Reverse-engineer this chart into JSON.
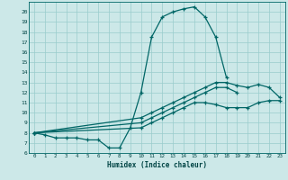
{
  "xlabel": "Humidex (Indice chaleur)",
  "bg_color": "#cce8e8",
  "grid_color": "#99cccc",
  "line_color": "#006666",
  "text_color": "#004444",
  "xlim": [
    -0.5,
    23.5
  ],
  "ylim": [
    6,
    21
  ],
  "yticks": [
    6,
    7,
    8,
    9,
    10,
    11,
    12,
    13,
    14,
    15,
    16,
    17,
    18,
    19,
    20
  ],
  "xticks": [
    0,
    1,
    2,
    3,
    4,
    5,
    6,
    7,
    8,
    9,
    10,
    11,
    12,
    13,
    14,
    15,
    16,
    17,
    18,
    19,
    20,
    21,
    22,
    23
  ],
  "lines": [
    {
      "x": [
        0,
        1,
        2,
        3,
        4,
        5,
        6,
        7,
        8,
        9,
        10,
        11,
        12,
        13,
        14,
        15,
        16,
        17,
        18
      ],
      "y": [
        8,
        7.8,
        7.5,
        7.5,
        7.5,
        7.3,
        7.3,
        6.5,
        6.5,
        8.5,
        12,
        17.5,
        19.5,
        20,
        20.3,
        20.5,
        19.5,
        17.5,
        13.5
      ]
    },
    {
      "x": [
        0,
        10,
        11,
        12,
        13,
        14,
        15,
        16,
        17,
        18,
        19,
        20,
        21,
        22,
        23
      ],
      "y": [
        8,
        9.5,
        10,
        10.5,
        11,
        11.5,
        12,
        12.5,
        13,
        13,
        12.7,
        12.5,
        12.8,
        12.5,
        11.5
      ]
    },
    {
      "x": [
        0,
        10,
        11,
        12,
        13,
        14,
        15,
        16,
        17,
        18,
        19
      ],
      "y": [
        8,
        9,
        9.5,
        10,
        10.5,
        11,
        11.5,
        12,
        12.5,
        12.5,
        12
      ]
    },
    {
      "x": [
        0,
        10,
        11,
        12,
        13,
        14,
        15,
        16,
        17,
        18,
        19,
        20,
        21,
        22,
        23
      ],
      "y": [
        8,
        8.5,
        9,
        9.5,
        10,
        10.5,
        11,
        11,
        10.8,
        10.5,
        10.5,
        10.5,
        11,
        11.2,
        11.2
      ]
    }
  ]
}
